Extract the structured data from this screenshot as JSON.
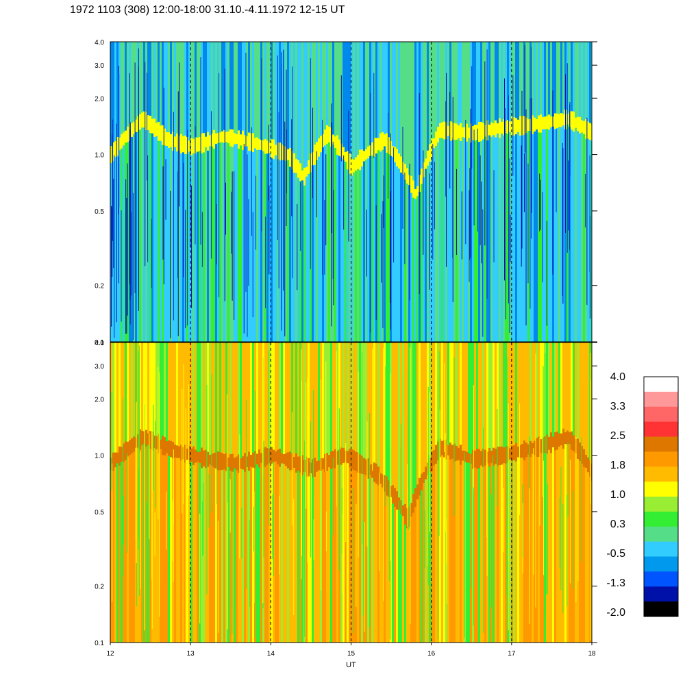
{
  "title": "1972 1103 (308) 12:00-18:00 31.10.-4.11.1972  12-15 UT",
  "chart_data": [
    {
      "type": "heatmap",
      "panel": "upper",
      "x_range": [
        12,
        18
      ],
      "y_range": [
        0.1,
        4.0
      ],
      "y_scale": "log",
      "x_ticks": [
        "12",
        "13",
        "14",
        "15",
        "16",
        "17",
        "18"
      ],
      "y_ticks": [
        "0.1",
        "0.2",
        "0.5",
        "1.0",
        "2.0",
        "3.0",
        "4.0"
      ],
      "dominant_colors": [
        "#33ccff",
        "#0088ee",
        "#55dd88",
        "#33ee33",
        "#ffff00"
      ],
      "band_level_profile": [
        {
          "x": 12.0,
          "y": 1.0
        },
        {
          "x": 12.4,
          "y": 1.55
        },
        {
          "x": 12.7,
          "y": 1.2
        },
        {
          "x": 13.0,
          "y": 1.1
        },
        {
          "x": 13.4,
          "y": 1.25
        },
        {
          "x": 13.8,
          "y": 1.15
        },
        {
          "x": 14.2,
          "y": 1.0
        },
        {
          "x": 14.4,
          "y": 0.75
        },
        {
          "x": 14.7,
          "y": 1.3
        },
        {
          "x": 15.0,
          "y": 0.85
        },
        {
          "x": 15.4,
          "y": 1.2
        },
        {
          "x": 15.8,
          "y": 0.6
        },
        {
          "x": 16.1,
          "y": 1.35
        },
        {
          "x": 16.5,
          "y": 1.3
        },
        {
          "x": 16.9,
          "y": 1.4
        },
        {
          "x": 17.3,
          "y": 1.45
        },
        {
          "x": 17.7,
          "y": 1.55
        },
        {
          "x": 18.0,
          "y": 1.3
        }
      ],
      "hour_marker_lines": [
        "13",
        "14",
        "15",
        "16",
        "17"
      ]
    },
    {
      "type": "heatmap",
      "panel": "lower",
      "x_range": [
        12,
        18
      ],
      "y_range": [
        0.1,
        4.0
      ],
      "y_scale": "log",
      "x_ticks": [
        "12",
        "13",
        "14",
        "15",
        "16",
        "17",
        "18"
      ],
      "y_ticks": [
        "0.1",
        "0.2",
        "0.5",
        "1.0",
        "2.0",
        "3.0",
        "4.0"
      ],
      "x_axis_label": "UT",
      "dominant_colors": [
        "#ffbb00",
        "#ff9900",
        "#ffff00",
        "#99ee33",
        "#33ee33"
      ],
      "band_level_profile": [
        {
          "x": 12.0,
          "y": 0.9
        },
        {
          "x": 12.4,
          "y": 1.25
        },
        {
          "x": 12.8,
          "y": 1.05
        },
        {
          "x": 13.2,
          "y": 0.95
        },
        {
          "x": 13.6,
          "y": 0.9
        },
        {
          "x": 14.0,
          "y": 1.0
        },
        {
          "x": 14.5,
          "y": 0.85
        },
        {
          "x": 14.9,
          "y": 1.0
        },
        {
          "x": 15.3,
          "y": 0.8
        },
        {
          "x": 15.7,
          "y": 0.45
        },
        {
          "x": 16.1,
          "y": 1.1
        },
        {
          "x": 16.5,
          "y": 0.95
        },
        {
          "x": 16.9,
          "y": 1.0
        },
        {
          "x": 17.3,
          "y": 1.1
        },
        {
          "x": 17.7,
          "y": 1.25
        },
        {
          "x": 18.0,
          "y": 0.8
        }
      ],
      "hour_marker_lines": [
        "13",
        "14",
        "15",
        "16",
        "17"
      ]
    }
  ],
  "colorbar": {
    "labels": [
      "4.0",
      "3.3",
      "2.5",
      "1.8",
      "1.0",
      "0.3",
      "-0.5",
      "-1.3",
      "-2.0"
    ],
    "colors_top_to_bottom": [
      "#ffffff",
      "#ff9999",
      "#ff6666",
      "#ff3333",
      "#dd7700",
      "#ff9900",
      "#ffbb00",
      "#ffff00",
      "#99ee33",
      "#33ee33",
      "#55dd88",
      "#33ccff",
      "#0099ee",
      "#0055ff",
      "#0011aa",
      "#000000"
    ]
  }
}
